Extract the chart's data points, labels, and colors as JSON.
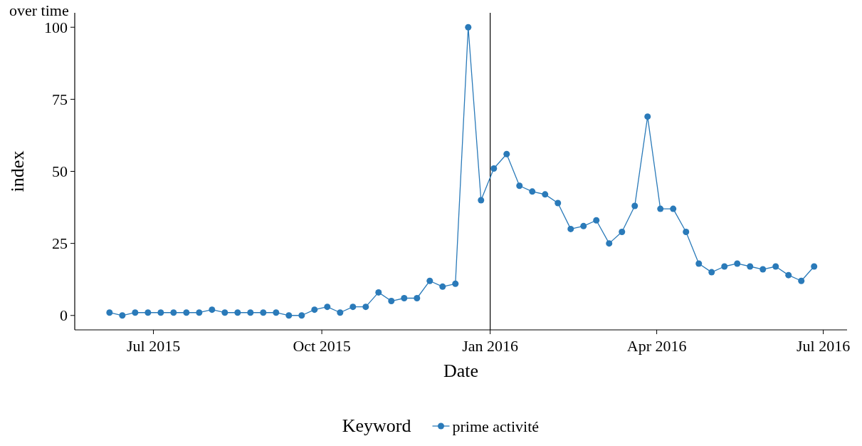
{
  "chart_data": {
    "type": "line",
    "title": "over time",
    "xlabel": "Date",
    "ylabel": "index",
    "legend_title": "Keyword",
    "legend": "bottom",
    "marker": "circle",
    "line_style": "solid",
    "grid": false,
    "x": [
      "2015-06-07",
      "2015-06-14",
      "2015-06-21",
      "2015-06-28",
      "2015-07-05",
      "2015-07-12",
      "2015-07-19",
      "2015-07-26",
      "2015-08-02",
      "2015-08-09",
      "2015-08-16",
      "2015-08-23",
      "2015-08-30",
      "2015-09-06",
      "2015-09-13",
      "2015-09-20",
      "2015-09-27",
      "2015-10-04",
      "2015-10-11",
      "2015-10-18",
      "2015-10-25",
      "2015-11-01",
      "2015-11-08",
      "2015-11-15",
      "2015-11-22",
      "2015-11-29",
      "2015-12-06",
      "2015-12-13",
      "2015-12-20",
      "2015-12-27",
      "2016-01-03",
      "2016-01-10",
      "2016-01-17",
      "2016-01-24",
      "2016-01-31",
      "2016-02-07",
      "2016-02-14",
      "2016-02-21",
      "2016-02-28",
      "2016-03-06",
      "2016-03-13",
      "2016-03-20",
      "2016-03-27",
      "2016-04-03",
      "2016-04-10",
      "2016-04-17",
      "2016-04-24",
      "2016-05-01",
      "2016-05-08",
      "2016-05-15",
      "2016-05-22",
      "2016-05-29",
      "2016-06-05",
      "2016-06-12",
      "2016-06-19",
      "2016-06-26"
    ],
    "series": [
      {
        "name": "prime activité",
        "color": "#2a7ab9",
        "values": [
          1,
          0,
          1,
          1,
          1,
          1,
          1,
          1,
          2,
          1,
          1,
          1,
          1,
          1,
          0,
          0,
          2,
          3,
          1,
          3,
          3,
          8,
          5,
          6,
          6,
          12,
          10,
          11,
          100,
          40,
          51,
          56,
          45,
          43,
          42,
          39,
          30,
          31,
          33,
          25,
          29,
          38,
          69,
          37,
          37,
          29,
          18,
          15,
          17,
          18,
          17,
          16,
          17,
          14,
          12,
          17
        ]
      }
    ],
    "xlim": [
      "2015-05-19",
      "2016-07-14"
    ],
    "xticks": [
      {
        "value": "2015-07-01",
        "label": "Jul 2015"
      },
      {
        "value": "2015-10-01",
        "label": "Oct 2015"
      },
      {
        "value": "2016-01-01",
        "label": "Jan 2016"
      },
      {
        "value": "2016-04-01",
        "label": "Apr 2016"
      },
      {
        "value": "2016-07-01",
        "label": "Jul 2016"
      }
    ],
    "ylim": [
      -5,
      105
    ],
    "yticks": [
      0,
      25,
      50,
      75,
      100
    ],
    "ref_lines": [
      {
        "axis": "x",
        "value": "2016-01-01",
        "label": null,
        "color": "#000000"
      }
    ]
  }
}
